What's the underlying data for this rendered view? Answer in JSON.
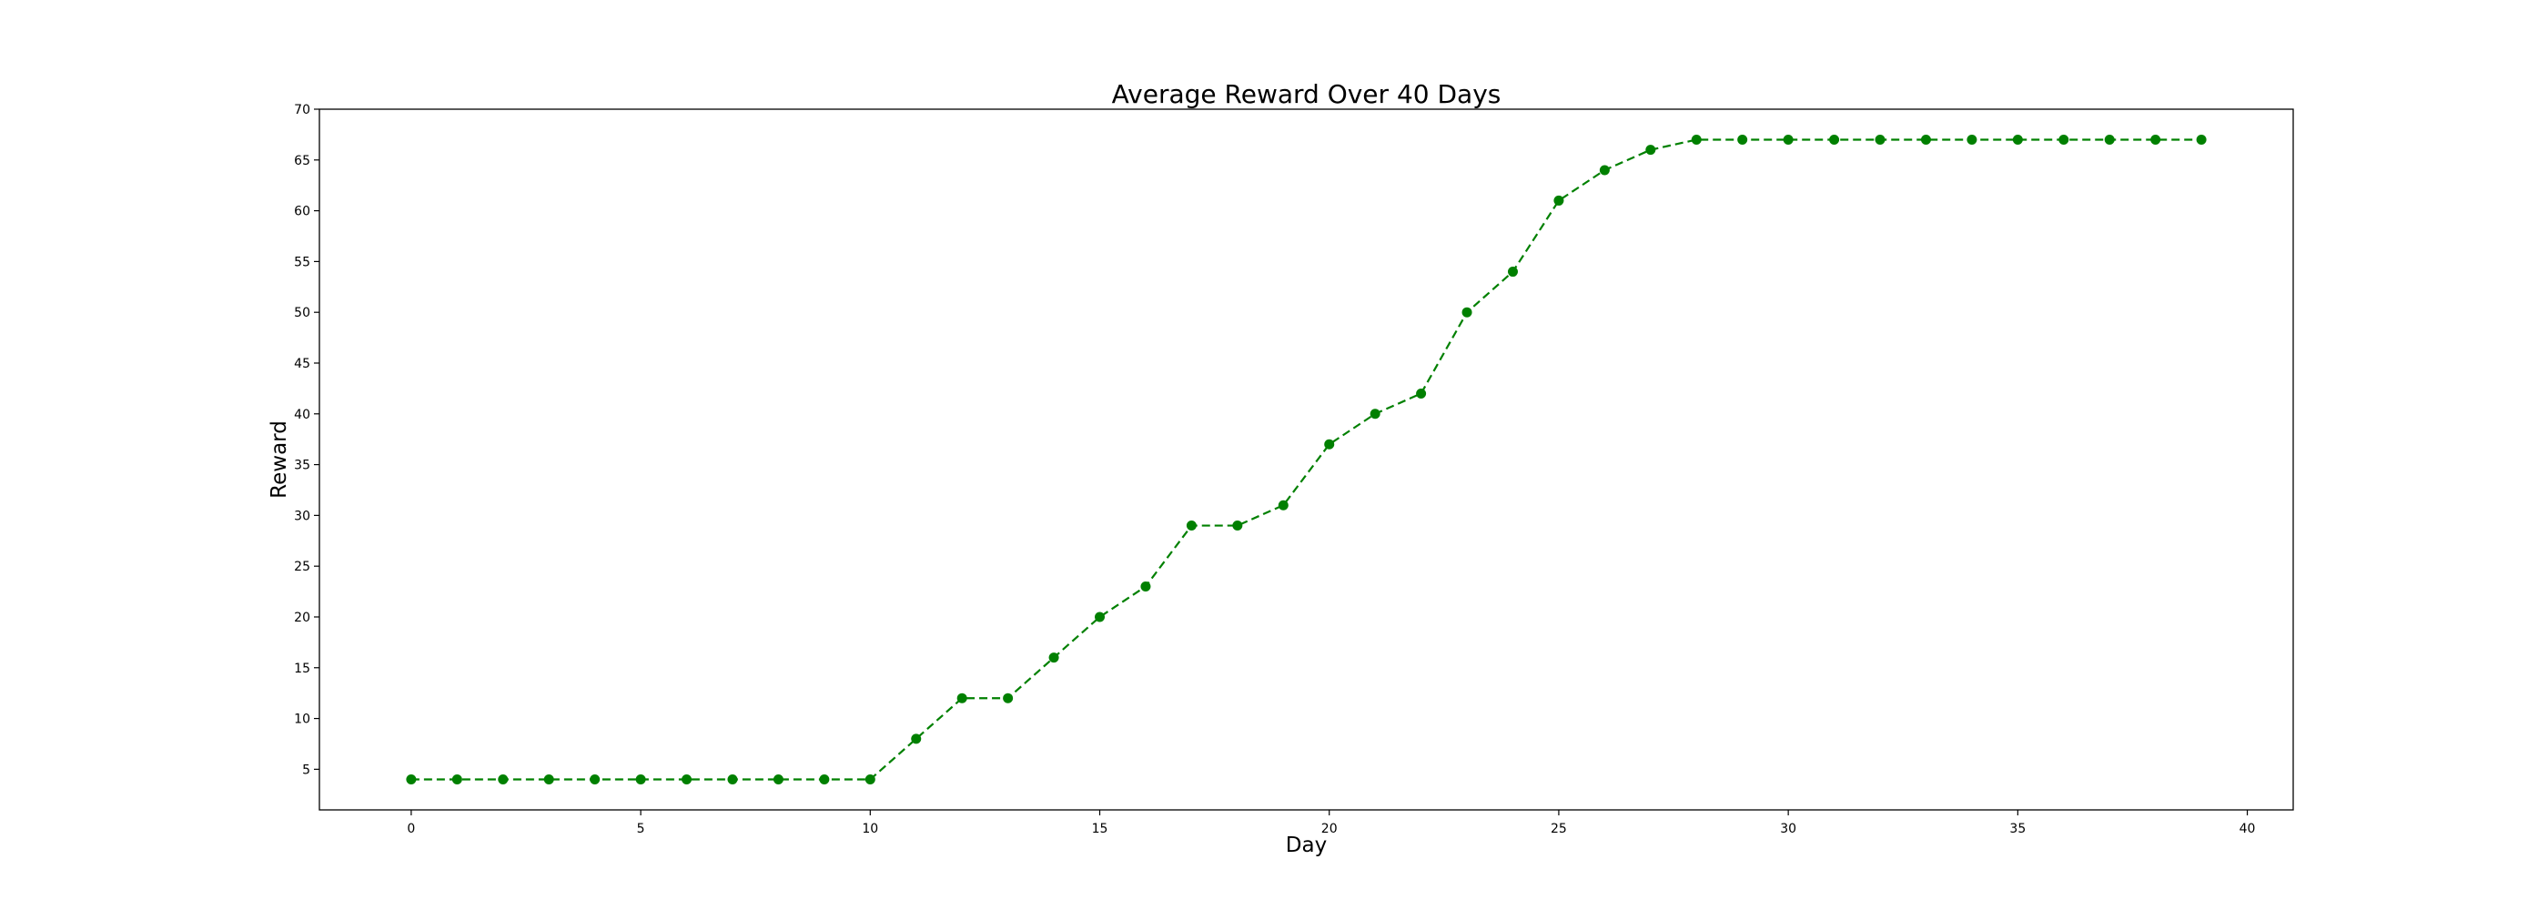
{
  "chart_data": {
    "type": "line",
    "title": "Average Reward Over 40 Days",
    "xlabel": "Day",
    "ylabel": "Reward",
    "xlim": [
      -2,
      41
    ],
    "ylim": [
      1,
      70
    ],
    "xticks": [
      0,
      5,
      10,
      15,
      20,
      25,
      30,
      35,
      40
    ],
    "yticks": [
      5,
      10,
      15,
      20,
      25,
      30,
      35,
      40,
      45,
      50,
      55,
      60,
      65,
      70
    ],
    "grid": false,
    "line_style": "dashed",
    "marker": "circle",
    "color": "#008000",
    "series": [
      {
        "x": [
          0,
          1,
          2,
          3,
          4,
          5,
          6,
          7,
          8,
          9,
          10,
          11,
          12,
          13,
          14,
          15,
          16,
          17,
          18,
          19,
          20,
          21,
          22,
          23,
          24,
          25,
          26,
          27,
          28,
          29,
          30,
          31,
          32,
          33,
          34,
          35,
          36,
          37,
          38,
          39
        ],
        "values": [
          4,
          4,
          4,
          4,
          4,
          4,
          4,
          4,
          4,
          4,
          4,
          8,
          12,
          12,
          16,
          20,
          23,
          29,
          29,
          31,
          37,
          40,
          42,
          50,
          54,
          61,
          64,
          66,
          67,
          67,
          67,
          67,
          67,
          67,
          67,
          67,
          67,
          67,
          67,
          67
        ]
      }
    ]
  }
}
